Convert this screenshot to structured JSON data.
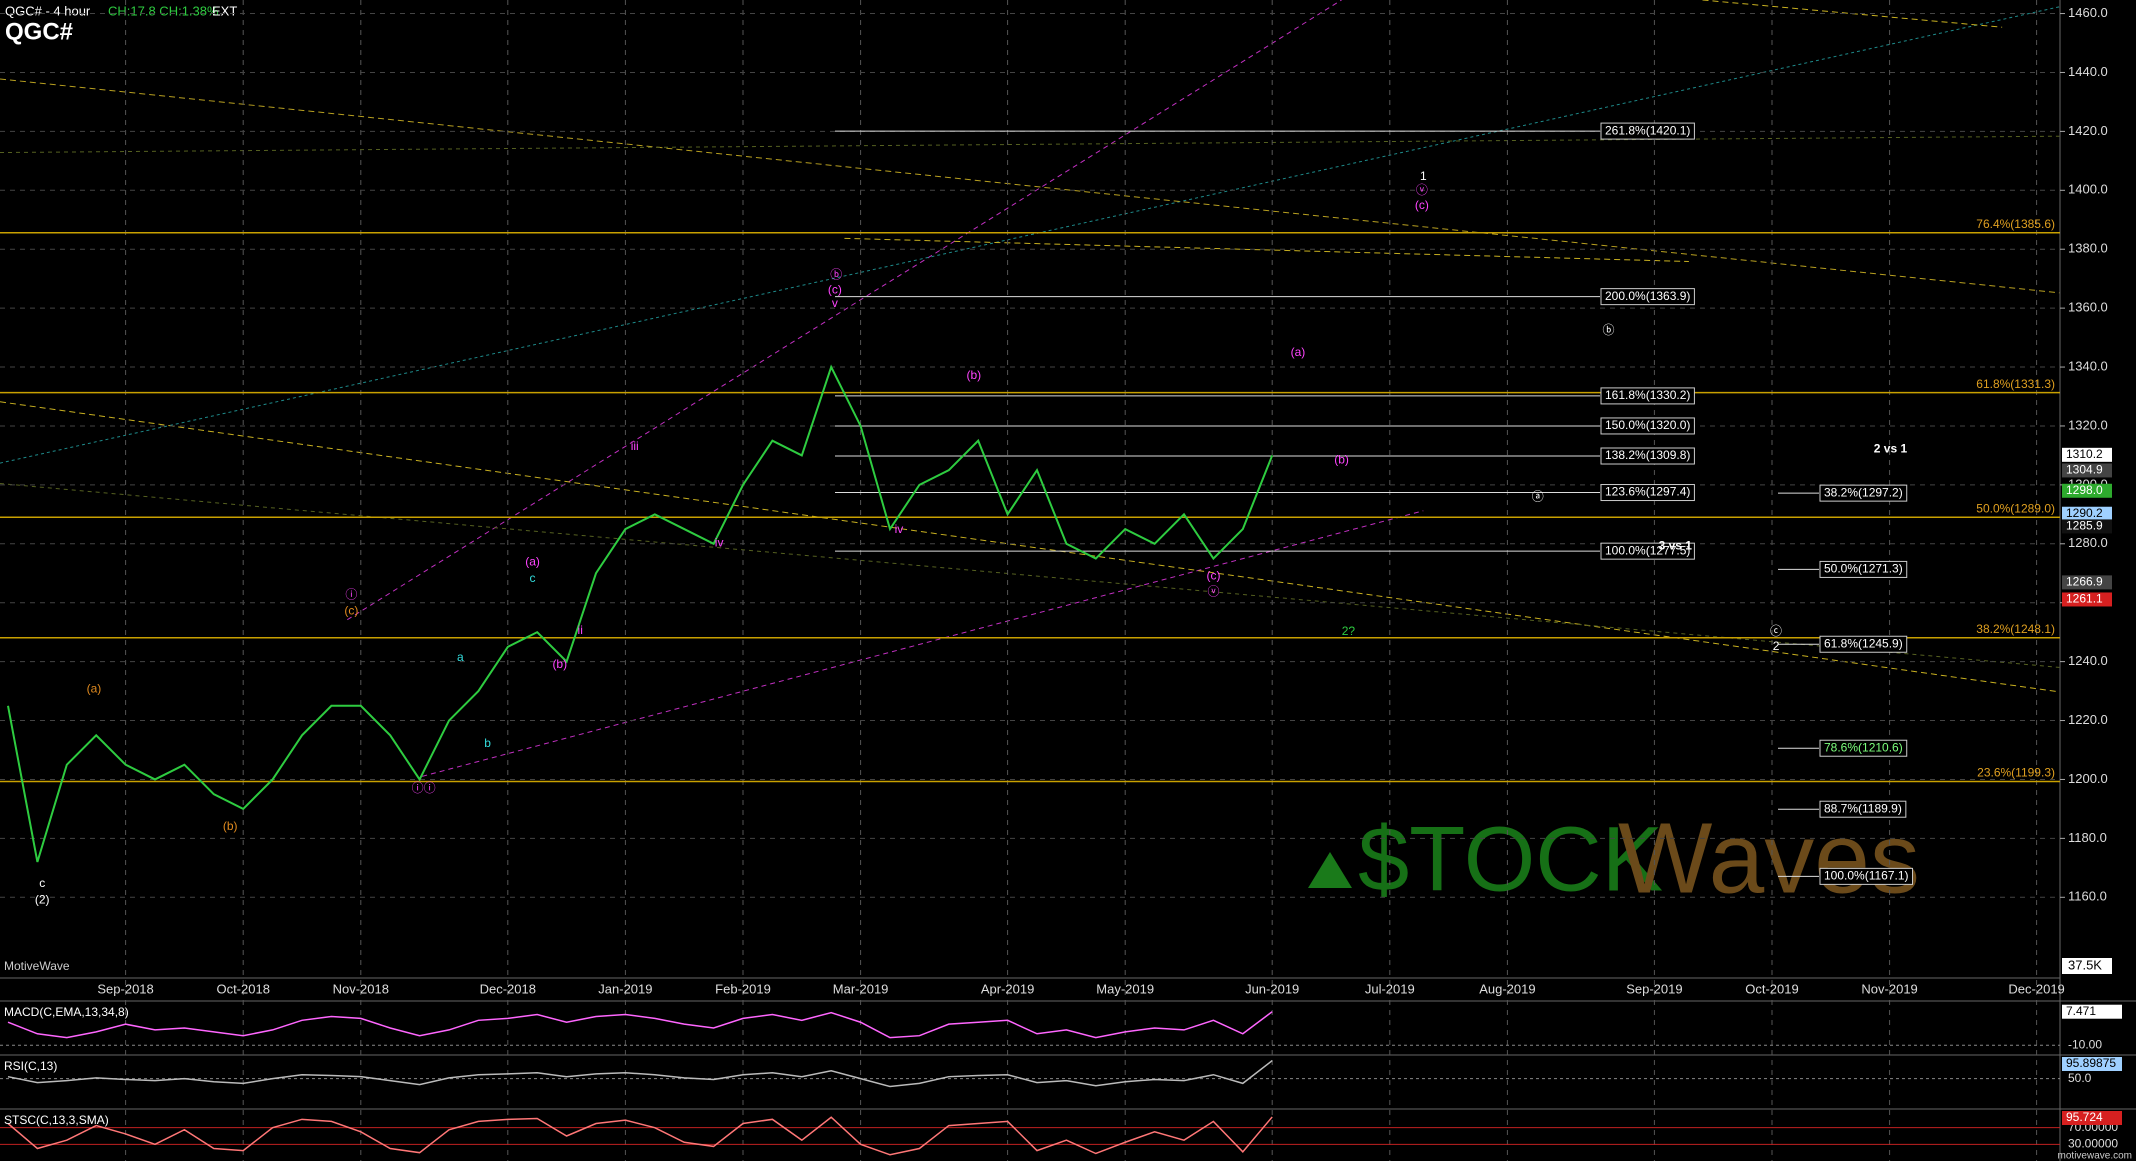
{
  "chart_data": {
    "type": "line",
    "title": "QGC#",
    "subtitle": "QGC# - 4 hour",
    "header_stats": "CH:17.8 CH:1.38%",
    "session": "EXT",
    "brand": "MotiveWave",
    "footer": "motivewave.com",
    "volume_label": "37.5K",
    "watermark": [
      "$TOCK",
      "Waves"
    ],
    "color": "#2ecc40",
    "grid": true,
    "categories": [
      null,
      null,
      null,
      null,
      "Sep-2018",
      null,
      null,
      null,
      "Oct-2018",
      null,
      null,
      null,
      "Nov-2018",
      null,
      null,
      null,
      null,
      "Dec-2018",
      null,
      null,
      null,
      "Jan-2019",
      null,
      null,
      null,
      "Feb-2019",
      null,
      null,
      null,
      "Mar-2019",
      null,
      null,
      null,
      null,
      "Apr-2019",
      null,
      null,
      null,
      "May-2019",
      null,
      null,
      null,
      null,
      "Jun-2019",
      null,
      null,
      null,
      "Jul-2019",
      null,
      null,
      null,
      "Aug-2019",
      null,
      null,
      null,
      null,
      "Sep-2019",
      null,
      null,
      null,
      "Oct-2019",
      null,
      null,
      null,
      "Nov-2019",
      null,
      null,
      null,
      null,
      "Dec-2019"
    ],
    "values": [
      1225,
      1172,
      1205,
      1215,
      1205,
      1200,
      1205,
      1195,
      1190,
      1200,
      1215,
      1225,
      1225,
      1215,
      1200,
      1220,
      1230,
      1245,
      1250,
      1240,
      1270,
      1285,
      1290,
      1285,
      1280,
      1300,
      1315,
      1310,
      1340,
      1320,
      1285,
      1300,
      1305,
      1315,
      1290,
      1305,
      1280,
      1275,
      1285,
      1280,
      1290,
      1275,
      1285,
      1310,
      null,
      null,
      null,
      null,
      null,
      null,
      null,
      null,
      null,
      null,
      null,
      null,
      null,
      null,
      null,
      null,
      null,
      null,
      null,
      null,
      null,
      null,
      null,
      null,
      null,
      null
    ],
    "ylim": [
      1132.6,
      1464.6
    ],
    "yticks": [
      {
        "value": 1160,
        "label": "1160.0"
      },
      {
        "value": 1180,
        "label": "1180.0"
      },
      {
        "value": 1200,
        "label": "1200.0"
      },
      {
        "value": 1220,
        "label": "1220.0"
      },
      {
        "value": 1240,
        "label": "1240.0"
      },
      {
        "value": 1260,
        "label": "1260.0"
      },
      {
        "value": 1280,
        "label": "1280.0"
      },
      {
        "value": 1300,
        "label": "1300.0"
      },
      {
        "value": 1320,
        "label": "1320.0"
      },
      {
        "value": 1340,
        "label": "1340.0"
      },
      {
        "value": 1360,
        "label": "1360.0"
      },
      {
        "value": 1380,
        "label": "1380.0"
      },
      {
        "value": 1400,
        "label": "1400.0"
      },
      {
        "value": 1420,
        "label": "1420.0"
      },
      {
        "value": 1440,
        "label": "1440.0"
      },
      {
        "value": 1460,
        "label": "1460.0"
      }
    ],
    "price_markers": [
      {
        "value": 1310.2,
        "label": "1310.2",
        "bg": "#ffffff",
        "fg": "#000000"
      },
      {
        "value": 1304.9,
        "label": "1304.9",
        "bg": "#444444",
        "fg": "#ffffff"
      },
      {
        "value": 1298,
        "label": "1298.0",
        "bg": "#2eaa2e",
        "fg": "#ffffff"
      },
      {
        "value": 1290.2,
        "label": "1290.2",
        "bg": "#9fd0ff",
        "fg": "#000000"
      },
      {
        "value": 1285.9,
        "label": "1285.9",
        "bg": "#111111",
        "fg": "#ffffff"
      },
      {
        "value": 1266.9,
        "label": "1266.9",
        "bg": "#444444",
        "fg": "#ffffff"
      },
      {
        "value": 1261.1,
        "label": "1261.1",
        "bg": "#d62020",
        "fg": "#ffffff"
      }
    ],
    "fib_extensions": [
      {
        "value": 1420.1,
        "label": "261.8%(1420.1)"
      },
      {
        "value": 1363.9,
        "label": "200.0%(1363.9)"
      },
      {
        "value": 1330.2,
        "label": "161.8%(1330.2)"
      },
      {
        "value": 1320,
        "label": "150.0%(1320.0)"
      },
      {
        "value": 1309.8,
        "label": "138.2%(1309.8)"
      },
      {
        "value": 1297.4,
        "label": "123.6%(1297.4)"
      },
      {
        "value": 1277.5,
        "label": "100.0%(1277.5)"
      }
    ],
    "fib_retracements": [
      {
        "value": 1297.2,
        "label": "38.2%(1297.2)",
        "color": "#ffffff"
      },
      {
        "value": 1271.3,
        "label": "50.0%(1271.3)",
        "color": "#ffffff"
      },
      {
        "value": 1245.9,
        "label": "61.8%(1245.9)",
        "color": "#ffffff"
      },
      {
        "value": 1210.6,
        "label": "78.6%(1210.6)",
        "color": "#7dff7d"
      },
      {
        "value": 1189.9,
        "label": "88.7%(1189.9)",
        "color": "#ffffff"
      },
      {
        "value": 1167.1,
        "label": "100.0%(1167.1)",
        "color": "#ffffff"
      }
    ],
    "key_levels": [
      {
        "value": 1385.6,
        "label": "76.4%(1385.6)"
      },
      {
        "value": 1331.3,
        "label": "61.8%(1331.3)"
      },
      {
        "value": 1289,
        "label": "50.0%(1289.0)"
      },
      {
        "value": 1248.1,
        "label": "38.2%(1248.1)"
      },
      {
        "value": 1199.3,
        "label": "23.6%(1199.3)"
      }
    ],
    "notes": [
      "2 vs 1",
      "3 vs 1"
    ],
    "wave_labels": [
      {
        "text": "1",
        "color": "#ffffff"
      },
      {
        "text": "ⓥ",
        "color": "#ff44ff"
      },
      {
        "text": "(c)",
        "color": "#ff44ff"
      },
      {
        "text": "ⓑ",
        "color": "#ff44ff"
      },
      {
        "text": "(c)",
        "color": "#ff44ff"
      },
      {
        "text": "v",
        "color": "#ff44ff"
      },
      {
        "text": "ⓑ",
        "color": "#ffffff"
      },
      {
        "text": "(a)",
        "color": "#ff44ff"
      },
      {
        "text": "(b)",
        "color": "#ff44ff"
      },
      {
        "text": "(b)",
        "color": "#ff44ff"
      },
      {
        "text": "ⓐ",
        "color": "#ffffff"
      },
      {
        "text": "iii",
        "color": "#ff44ff"
      },
      {
        "text": "iv",
        "color": "#ff44ff"
      },
      {
        "text": "iv",
        "color": "#ff44ff"
      },
      {
        "text": "(a)",
        "color": "#ff44ff"
      },
      {
        "text": "c",
        "color": "#33dddd"
      },
      {
        "text": "ⓘ",
        "color": "#ff44ff"
      },
      {
        "text": "(c)",
        "color": "#e08a1e"
      },
      {
        "text": "a",
        "color": "#33dddd"
      },
      {
        "text": "(b)",
        "color": "#ff44ff"
      },
      {
        "text": "ii",
        "color": "#ff44ff"
      },
      {
        "text": "b",
        "color": "#33dddd"
      },
      {
        "text": "(a)",
        "color": "#e08a1e"
      },
      {
        "text": "(b)",
        "color": "#e08a1e"
      },
      {
        "text": "ⓘⓘ",
        "color": "#ff44ff"
      },
      {
        "text": "c",
        "color": "#ffffff"
      },
      {
        "text": "(2)",
        "color": "#ffffff"
      },
      {
        "text": "(c)",
        "color": "#ff44ff"
      },
      {
        "text": "ⓥ",
        "color": "#ff44ff"
      },
      {
        "text": "2?",
        "color": "#2ecc40"
      },
      {
        "text": "ⓒ",
        "color": "#ffffff"
      },
      {
        "text": "2",
        "color": "#ffffff"
      }
    ],
    "indicators": [
      {
        "name": "MACD(C,EMA,13,34,8)",
        "color": "#ff66ff",
        "ylim": [
          -14,
          12
        ],
        "yticks": [
          {
            "value": -10,
            "label": "-10.00"
          }
        ],
        "values": [
          2,
          -4,
          -6,
          -3,
          1,
          -2,
          -1,
          -3,
          -5,
          -2,
          3,
          5,
          4,
          -1,
          -5,
          -2,
          3,
          4,
          6,
          2,
          5,
          6,
          4,
          1,
          -1,
          4,
          6,
          3,
          7,
          2,
          -6,
          -5,
          1,
          2,
          3,
          -4,
          -2,
          -6,
          -3,
          -1,
          -2,
          3,
          -4,
          7.471
        ]
      },
      {
        "name": "RSI(C,13)",
        "color": "#bbbbbb",
        "ylim": [
          -22,
          105
        ],
        "yticks": [
          {
            "value": 50,
            "label": "50.0"
          }
        ],
        "values": [
          55,
          40,
          45,
          52,
          48,
          45,
          50,
          42,
          38,
          50,
          60,
          58,
          55,
          45,
          35,
          52,
          60,
          62,
          65,
          55,
          62,
          65,
          60,
          52,
          48,
          60,
          65,
          55,
          70,
          50,
          30,
          38,
          55,
          58,
          60,
          40,
          45,
          32,
          42,
          48,
          45,
          60,
          38,
          95.89875
        ]
      },
      {
        "name": "STSC(C,13,3,SMA)",
        "color": "#ff7777",
        "ylim": [
          -10,
          110
        ],
        "yticks": [
          {
            "value": 70,
            "label": "70.00000"
          },
          {
            "value": 30,
            "label": "30.00000"
          }
        ],
        "values": [
          80,
          20,
          40,
          75,
          55,
          30,
          65,
          20,
          15,
          70,
          90,
          85,
          60,
          20,
          10,
          65,
          85,
          90,
          92,
          50,
          80,
          88,
          70,
          35,
          25,
          80,
          90,
          40,
          95,
          30,
          5,
          20,
          75,
          80,
          85,
          15,
          40,
          8,
          35,
          60,
          40,
          85,
          12,
          95.724
        ]
      }
    ]
  }
}
